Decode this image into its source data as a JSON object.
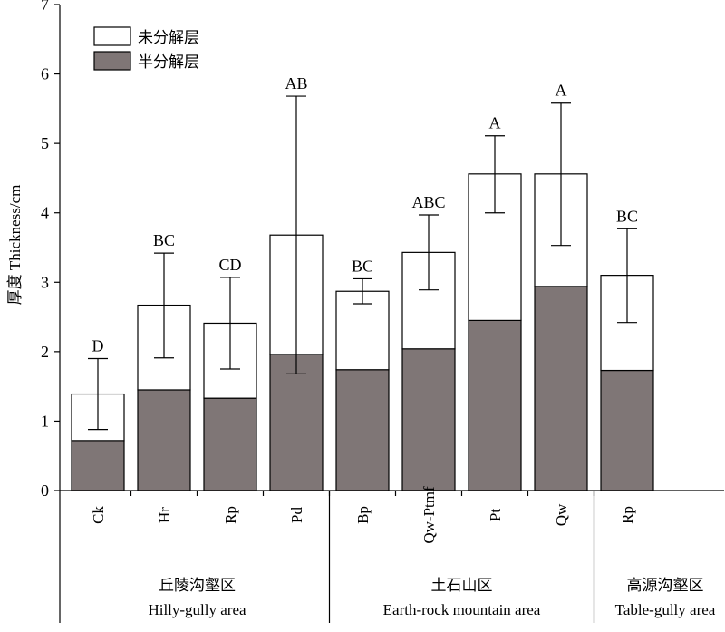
{
  "chart_data": {
    "type": "bar",
    "stacked": true,
    "ylabel": "厚度 Thickness/cm",
    "ylim": [
      0,
      7
    ],
    "yticks": [
      0,
      1,
      2,
      3,
      4,
      5,
      6,
      7
    ],
    "grid": false,
    "legend": {
      "position": "top-left",
      "items": [
        {
          "label": "未分解层",
          "color": "#ffffff"
        },
        {
          "label": "半分解层",
          "color": "#7f7676"
        }
      ]
    },
    "categories": [
      "Ck",
      "Hr",
      "Rp",
      "Pd",
      "Bp",
      "Qw-Ptmf",
      "Pt",
      "Qw",
      "Rp"
    ],
    "series": [
      {
        "name": "半分解层",
        "color": "#7f7676",
        "values": [
          0.72,
          1.45,
          1.33,
          1.96,
          1.74,
          2.04,
          2.45,
          2.94,
          1.73
        ]
      },
      {
        "name": "未分解层",
        "color": "#ffffff",
        "values": [
          0.67,
          1.22,
          1.08,
          1.72,
          1.13,
          1.39,
          2.11,
          1.62,
          1.37
        ]
      }
    ],
    "totals": [
      1.39,
      2.67,
      2.41,
      3.68,
      2.87,
      3.43,
      4.56,
      4.56,
      3.1
    ],
    "error_bars": {
      "upper": [
        1.9,
        3.42,
        3.07,
        5.68,
        3.05,
        3.97,
        5.11,
        5.58,
        3.77
      ],
      "lower": [
        0.88,
        1.91,
        1.75,
        1.68,
        2.69,
        2.89,
        4.0,
        3.53,
        2.42
      ]
    },
    "significance_labels": [
      "D",
      "BC",
      "CD",
      "AB",
      "BC",
      "ABC",
      "A",
      "A",
      "BC"
    ],
    "groups": [
      {
        "name_cn": "丘陵沟壑区",
        "name_en": "Hilly-gully area",
        "start": 0,
        "end": 3
      },
      {
        "name_cn": "土石山区",
        "name_en": "Earth-rock mountain area",
        "start": 4,
        "end": 7
      },
      {
        "name_cn": "高源沟壑区",
        "name_en": "Table-gully area",
        "start": 8,
        "end": 8
      }
    ]
  }
}
